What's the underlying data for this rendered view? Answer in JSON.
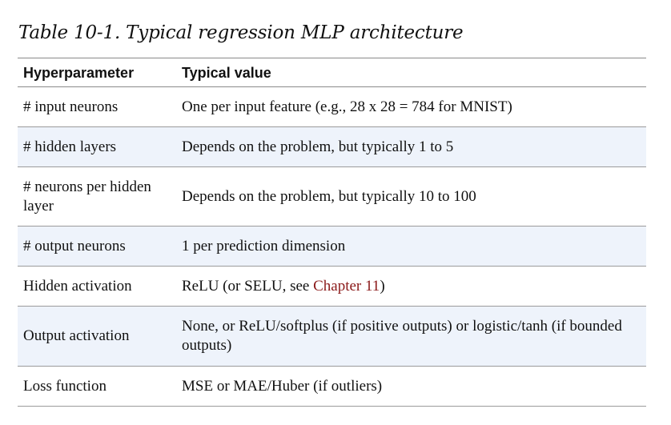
{
  "caption": "Table 10-1. Typical regression MLP architecture",
  "headers": {
    "col1": "Hyperparameter",
    "col2": "Typical value"
  },
  "rows": [
    {
      "param": "# input neurons",
      "value": "One per input feature (e.g., 28 x 28 = 784 for MNIST)"
    },
    {
      "param": "# hidden layers",
      "value": "Depends on the problem, but typically 1 to 5"
    },
    {
      "param": "# neurons per hidden layer",
      "value": "Depends on the problem, but typically 10 to 100"
    },
    {
      "param": "# output neurons",
      "value": "1 per prediction dimension"
    },
    {
      "param": "Hidden activation",
      "value_prefix": "ReLU (or SELU, see ",
      "value_link": "Chapter 11",
      "value_suffix": ")"
    },
    {
      "param": "Output activation",
      "value": "None, or ReLU/softplus (if positive outputs) or logistic/tanh (if bounded outputs)"
    },
    {
      "param": "Loss function",
      "value": "MSE or MAE/Huber (if outliers)"
    }
  ],
  "colors": {
    "alt_row_bg": "#eef3fb",
    "link": "#8b1a1a"
  }
}
